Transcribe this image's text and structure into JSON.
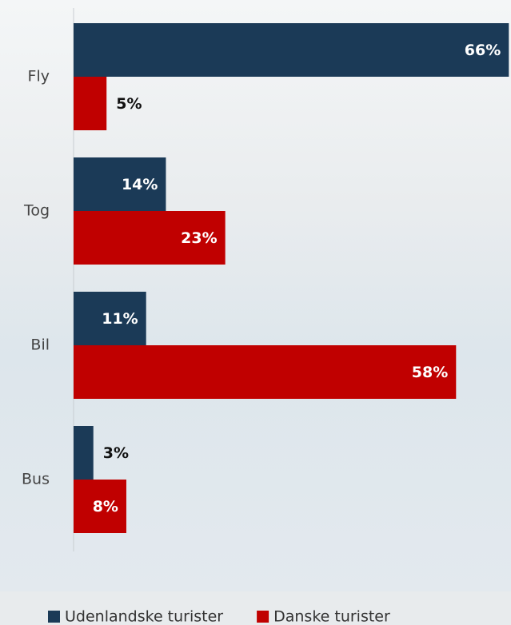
{
  "chart_data": {
    "type": "barh",
    "categories": [
      "Fly",
      "Tog",
      "Bil",
      "Bus"
    ],
    "series": [
      {
        "name": "Udenlandske turister",
        "color": "#1b3a57",
        "values": [
          66,
          14,
          11,
          3
        ],
        "value_labels": [
          "66%",
          "14%",
          "11%",
          "3%"
        ]
      },
      {
        "name": "Danske turister",
        "color": "#c00000",
        "values": [
          5,
          23,
          58,
          8
        ],
        "value_labels": [
          "5%",
          "23%",
          "58%",
          "8%"
        ]
      }
    ],
    "legend": "bottom"
  }
}
